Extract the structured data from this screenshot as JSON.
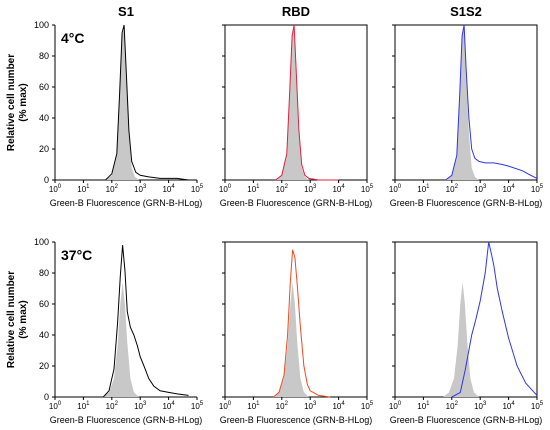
{
  "chart_data": {
    "type": "area",
    "column_titles": [
      "S1",
      "RBD",
      "S1S2"
    ],
    "row_titles": [
      "4°C",
      "37°C"
    ],
    "ylabel_line1": "Relative cell number",
    "ylabel_line2": "(% max)",
    "xlabel": "Green-B Fluorescence (GRN-B-HLog)",
    "xscale": "log",
    "xlim": [
      1,
      100000
    ],
    "ylim": [
      0,
      100
    ],
    "y_ticks": [
      "0",
      "20",
      "40",
      "60",
      "80",
      "100"
    ],
    "x_tick_exponents": [
      "0",
      "1",
      "2",
      "3",
      "4",
      "5"
    ],
    "grid": false,
    "series_colors": {
      "control": "#c8c8c8",
      "S1": "#000000",
      "RBD_4C": "#e0203c",
      "RBD_37C": "#ee4a22",
      "S1S2": "#2f35e6"
    },
    "panels": [
      {
        "row": "4°C",
        "column": "S1",
        "control": {
          "x": [
            60,
            100,
            150,
            190,
            230,
            270,
            320,
            400,
            500,
            650,
            900
          ],
          "y": [
            0,
            3,
            16,
            55,
            93,
            98,
            70,
            30,
            8,
            2,
            0
          ]
        },
        "sample": {
          "x": [
            60,
            100,
            150,
            190,
            230,
            270,
            320,
            400,
            500,
            700,
            1000,
            2000,
            5000,
            10000,
            20000,
            50000
          ],
          "y": [
            0,
            4,
            17,
            57,
            95,
            100,
            72,
            32,
            12,
            5,
            3,
            2,
            1,
            1,
            1,
            0
          ]
        }
      },
      {
        "row": "4°C",
        "column": "RBD",
        "control": {
          "x": [
            60,
            100,
            150,
            190,
            230,
            270,
            320,
            400,
            500,
            650,
            900
          ],
          "y": [
            0,
            3,
            16,
            55,
            93,
            98,
            70,
            30,
            8,
            2,
            0
          ]
        },
        "sample": {
          "x": [
            60,
            100,
            150,
            190,
            230,
            270,
            320,
            400,
            500,
            650,
            900,
            2000,
            10000
          ],
          "y": [
            0,
            3,
            17,
            57,
            93,
            100,
            72,
            32,
            10,
            3,
            1,
            0,
            0
          ]
        }
      },
      {
        "row": "4°C",
        "column": "S1S2",
        "control": {
          "x": [
            60,
            100,
            150,
            190,
            230,
            270,
            320,
            400,
            500,
            650,
            900
          ],
          "y": [
            0,
            3,
            16,
            55,
            93,
            98,
            70,
            30,
            8,
            2,
            0
          ]
        },
        "sample": {
          "x": [
            60,
            100,
            150,
            190,
            230,
            270,
            320,
            400,
            500,
            650,
            900,
            1500,
            3000,
            6000,
            10000,
            30000,
            60000,
            100000
          ],
          "y": [
            0,
            3,
            16,
            55,
            93,
            100,
            72,
            40,
            20,
            14,
            12,
            11,
            11,
            10,
            9,
            6,
            3,
            1
          ]
        }
      },
      {
        "row": "37°C",
        "column": "S1",
        "control": {
          "x": [
            50,
            80,
            120,
            160,
            200,
            240,
            290,
            350,
            450,
            600,
            900
          ],
          "y": [
            0,
            3,
            12,
            33,
            60,
            74,
            60,
            35,
            12,
            3,
            0
          ]
        },
        "sample": {
          "x": [
            50,
            80,
            120,
            160,
            200,
            240,
            290,
            350,
            450,
            600,
            800,
            1000,
            1500,
            2000,
            3000,
            5000,
            10000,
            20000,
            50000
          ],
          "y": [
            0,
            4,
            18,
            48,
            78,
            98,
            82,
            55,
            45,
            40,
            33,
            26,
            18,
            12,
            7,
            4,
            3,
            2,
            1
          ]
        }
      },
      {
        "row": "37°C",
        "column": "RBD",
        "control": {
          "x": [
            50,
            80,
            120,
            160,
            200,
            240,
            290,
            350,
            450,
            600,
            900
          ],
          "y": [
            0,
            3,
            12,
            33,
            60,
            74,
            60,
            35,
            12,
            3,
            0
          ]
        },
        "sample": {
          "x": [
            50,
            80,
            120,
            160,
            200,
            240,
            290,
            350,
            450,
            600,
            800,
            1000,
            2000,
            5000
          ],
          "y": [
            0,
            3,
            14,
            40,
            74,
            95,
            90,
            72,
            45,
            20,
            8,
            4,
            1,
            0
          ]
        }
      },
      {
        "row": "37°C",
        "column": "S1S2",
        "control": {
          "x": [
            50,
            80,
            120,
            160,
            200,
            240,
            290,
            350,
            450,
            600,
            900
          ],
          "y": [
            0,
            3,
            12,
            33,
            60,
            74,
            60,
            35,
            12,
            3,
            0
          ]
        },
        "sample": {
          "x": [
            100,
            200,
            300,
            500,
            700,
            1000,
            1500,
            2000,
            2500,
            3000,
            4000,
            6000,
            10000,
            20000,
            40000,
            80000,
            100000
          ],
          "y": [
            0,
            3,
            18,
            40,
            50,
            62,
            80,
            100,
            92,
            85,
            70,
            55,
            38,
            20,
            9,
            3,
            1
          ]
        }
      }
    ]
  }
}
